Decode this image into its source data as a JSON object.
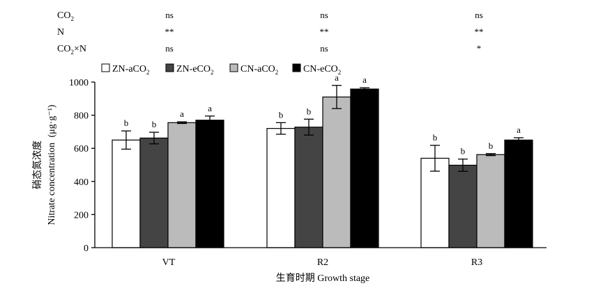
{
  "stats": {
    "rows": [
      {
        "label_main": "CO",
        "label_sub": "2",
        "label_rest": "",
        "values": [
          "ns",
          "ns",
          "ns"
        ]
      },
      {
        "label_main": "N",
        "label_sub": "",
        "label_rest": "",
        "values": [
          "**",
          "**",
          "**"
        ]
      },
      {
        "label_main": "CO",
        "label_sub": "2",
        "label_rest": "×N",
        "values": [
          "ns",
          "ns",
          "*"
        ]
      }
    ]
  },
  "legend": [
    {
      "main": "ZN-aCO",
      "sub": "2",
      "color": "#ffffff"
    },
    {
      "main": "ZN-eCO",
      "sub": "2",
      "color": "#444444"
    },
    {
      "main": "CN-aCO",
      "sub": "2",
      "color": "#bbbbbb"
    },
    {
      "main": "CN-eCO",
      "sub": "2",
      "color": "#000000"
    }
  ],
  "chart_data": {
    "type": "bar",
    "categories": [
      "VT",
      "R2",
      "R3"
    ],
    "series": [
      {
        "name": "ZN-aCO2",
        "values": [
          650,
          720,
          540
        ],
        "errors": [
          55,
          35,
          78
        ],
        "letters": [
          "b",
          "b",
          "b"
        ]
      },
      {
        "name": "ZN-eCO2",
        "values": [
          662,
          728,
          498
        ],
        "errors": [
          35,
          48,
          37
        ],
        "letters": [
          "b",
          "b",
          "b"
        ]
      },
      {
        "name": "CN-aCO2",
        "values": [
          755,
          910,
          562
        ],
        "errors": [
          5,
          70,
          6
        ],
        "letters": [
          "a",
          "a",
          "b"
        ]
      },
      {
        "name": "CN-eCO2",
        "values": [
          770,
          958,
          650
        ],
        "errors": [
          25,
          8,
          14
        ],
        "letters": [
          "a",
          "a",
          "a"
        ]
      }
    ],
    "ylim": [
      0,
      1000
    ],
    "yticks": [
      0,
      200,
      400,
      600,
      800,
      1000
    ],
    "ylabel_cn": "硝态氮浓度",
    "ylabel_en": "Nitrate concentration",
    "ylabel_unit": "(μg·g⁻¹)",
    "xlabel": "生育时期 Growth stage"
  }
}
